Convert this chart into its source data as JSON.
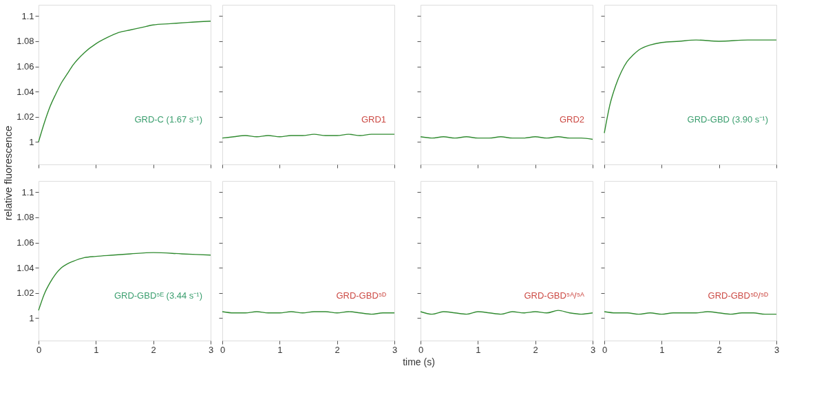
{
  "chart_data": [
    {
      "type": "line",
      "x": [
        0,
        0.1,
        0.2,
        0.3,
        0.4,
        0.5,
        0.6,
        0.8,
        1.0,
        1.2,
        1.4,
        1.6,
        1.8,
        2.0,
        2.3,
        2.6,
        3.0
      ],
      "series": [
        {
          "color": "#2f8a2f",
          "values": [
            1.0,
            1.015,
            1.028,
            1.038,
            1.047,
            1.054,
            1.061,
            1.071,
            1.078,
            1.083,
            1.087,
            1.089,
            1.091,
            1.093,
            1.094,
            1.095,
            1.096
          ]
        }
      ],
      "xlim": [
        0,
        3
      ],
      "ylim": [
        0.982,
        1.109
      ],
      "xticks": [
        0,
        1,
        2,
        3
      ],
      "yticks": [
        1,
        1.02,
        1.04,
        1.06,
        1.08,
        1.1
      ],
      "tick_labels": "y",
      "annotations": [
        "GRD-C (1.67 s⁻¹)"
      ]
    },
    {
      "type": "line",
      "x": [
        0,
        0.2,
        0.4,
        0.6,
        0.8,
        1.0,
        1.2,
        1.4,
        1.6,
        1.8,
        2.0,
        2.2,
        2.4,
        2.6,
        2.8,
        3.0
      ],
      "series": [
        {
          "color": "#2f8a2f",
          "values": [
            1.003,
            1.004,
            1.005,
            1.004,
            1.005,
            1.004,
            1.005,
            1.005,
            1.006,
            1.005,
            1.005,
            1.006,
            1.005,
            1.006,
            1.006,
            1.006
          ]
        }
      ],
      "xlim": [
        0,
        3
      ],
      "ylim": [
        0.982,
        1.109
      ],
      "xticks": [
        0,
        1,
        2,
        3
      ],
      "yticks": [
        1,
        1.02,
        1.04,
        1.06,
        1.08,
        1.1
      ],
      "tick_labels": false,
      "annotations": [
        "GRD1"
      ]
    },
    {
      "type": "line",
      "x": [
        0,
        0.2,
        0.4,
        0.6,
        0.8,
        1.0,
        1.2,
        1.4,
        1.6,
        1.8,
        2.0,
        2.2,
        2.4,
        2.6,
        2.8,
        3.0
      ],
      "series": [
        {
          "color": "#2f8a2f",
          "values": [
            1.004,
            1.003,
            1.004,
            1.003,
            1.004,
            1.003,
            1.003,
            1.004,
            1.003,
            1.003,
            1.004,
            1.003,
            1.004,
            1.003,
            1.003,
            1.002
          ]
        }
      ],
      "xlim": [
        0,
        3
      ],
      "ylim": [
        0.982,
        1.109
      ],
      "xticks": [
        0,
        1,
        2,
        3
      ],
      "yticks": [
        1,
        1.02,
        1.04,
        1.06,
        1.08,
        1.1
      ],
      "tick_labels": false,
      "annotations": [
        "GRD2"
      ]
    },
    {
      "type": "line",
      "x": [
        0,
        0.1,
        0.2,
        0.3,
        0.4,
        0.5,
        0.6,
        0.8,
        1.0,
        1.3,
        1.6,
        2.0,
        2.5,
        3.0
      ],
      "series": [
        {
          "color": "#2f8a2f",
          "values": [
            1.007,
            1.03,
            1.045,
            1.056,
            1.064,
            1.069,
            1.073,
            1.077,
            1.079,
            1.08,
            1.081,
            1.08,
            1.081,
            1.081
          ]
        }
      ],
      "xlim": [
        0,
        3
      ],
      "ylim": [
        0.982,
        1.109
      ],
      "xticks": [
        0,
        1,
        2,
        3
      ],
      "yticks": [
        1,
        1.02,
        1.04,
        1.06,
        1.08,
        1.1
      ],
      "tick_labels": false,
      "annotations": [
        "GRD-GBD (3.90 s⁻¹)"
      ]
    },
    {
      "type": "line",
      "x": [
        0,
        0.1,
        0.2,
        0.3,
        0.4,
        0.5,
        0.6,
        0.8,
        1.0,
        1.3,
        1.6,
        2.0,
        2.5,
        3.0
      ],
      "series": [
        {
          "color": "#2f8a2f",
          "values": [
            1.006,
            1.019,
            1.028,
            1.035,
            1.04,
            1.043,
            1.045,
            1.048,
            1.049,
            1.05,
            1.051,
            1.052,
            1.051,
            1.05
          ]
        }
      ],
      "xlim": [
        0,
        3
      ],
      "ylim": [
        0.982,
        1.109
      ],
      "xticks": [
        0,
        1,
        2,
        3
      ],
      "yticks": [
        1,
        1.02,
        1.04,
        1.06,
        1.08,
        1.1
      ],
      "ylabel": "relative fluorescence",
      "annotations": [
        "GRD-GBD⁵ᴱ (3.44 s⁻¹)"
      ]
    },
    {
      "type": "line",
      "x": [
        0,
        0.2,
        0.4,
        0.6,
        0.8,
        1.0,
        1.2,
        1.4,
        1.6,
        1.8,
        2.0,
        2.2,
        2.4,
        2.6,
        2.8,
        3.0
      ],
      "series": [
        {
          "color": "#2f8a2f",
          "values": [
            1.005,
            1.004,
            1.004,
            1.005,
            1.004,
            1.004,
            1.005,
            1.004,
            1.005,
            1.005,
            1.004,
            1.005,
            1.004,
            1.003,
            1.004,
            1.004
          ]
        }
      ],
      "xlim": [
        0,
        3
      ],
      "ylim": [
        0.982,
        1.109
      ],
      "xticks": [
        0,
        1,
        2,
        3
      ],
      "yticks": [
        1,
        1.02,
        1.04,
        1.06,
        1.08,
        1.1
      ],
      "tick_labels": "x",
      "annotations": [
        "GRD-GBD⁵ᴰ"
      ]
    },
    {
      "type": "line",
      "x": [
        0,
        0.2,
        0.4,
        0.6,
        0.8,
        1.0,
        1.2,
        1.4,
        1.6,
        1.8,
        2.0,
        2.2,
        2.4,
        2.6,
        2.8,
        3.0
      ],
      "series": [
        {
          "color": "#2f8a2f",
          "values": [
            1.005,
            1.003,
            1.005,
            1.004,
            1.003,
            1.005,
            1.004,
            1.003,
            1.005,
            1.004,
            1.005,
            1.004,
            1.006,
            1.004,
            1.003,
            1.004
          ]
        }
      ],
      "xlim": [
        0,
        3
      ],
      "ylim": [
        0.982,
        1.109
      ],
      "xticks": [
        0,
        1,
        2,
        3
      ],
      "yticks": [
        1,
        1.02,
        1.04,
        1.06,
        1.08,
        1.1
      ],
      "tick_labels": "x",
      "xlabel": "time (s)",
      "annotations": [
        "GRD-GBD⁵ᴬ/⁵ᴬ"
      ]
    },
    {
      "type": "line",
      "x": [
        0,
        0.2,
        0.4,
        0.6,
        0.8,
        1.0,
        1.2,
        1.4,
        1.6,
        1.8,
        2.0,
        2.2,
        2.4,
        2.6,
        2.8,
        3.0
      ],
      "series": [
        {
          "color": "#2f8a2f",
          "values": [
            1.005,
            1.004,
            1.004,
            1.003,
            1.004,
            1.003,
            1.004,
            1.004,
            1.004,
            1.005,
            1.004,
            1.003,
            1.004,
            1.004,
            1.003,
            1.003
          ]
        }
      ],
      "xlim": [
        0,
        3
      ],
      "ylim": [
        0.982,
        1.109
      ],
      "xticks": [
        0,
        1,
        2,
        3
      ],
      "yticks": [
        1,
        1.02,
        1.04,
        1.06,
        1.08,
        1.1
      ],
      "tick_labels": "x",
      "annotations": [
        "GRD-GBD⁵ᴰ/⁵ᴰ"
      ]
    }
  ]
}
